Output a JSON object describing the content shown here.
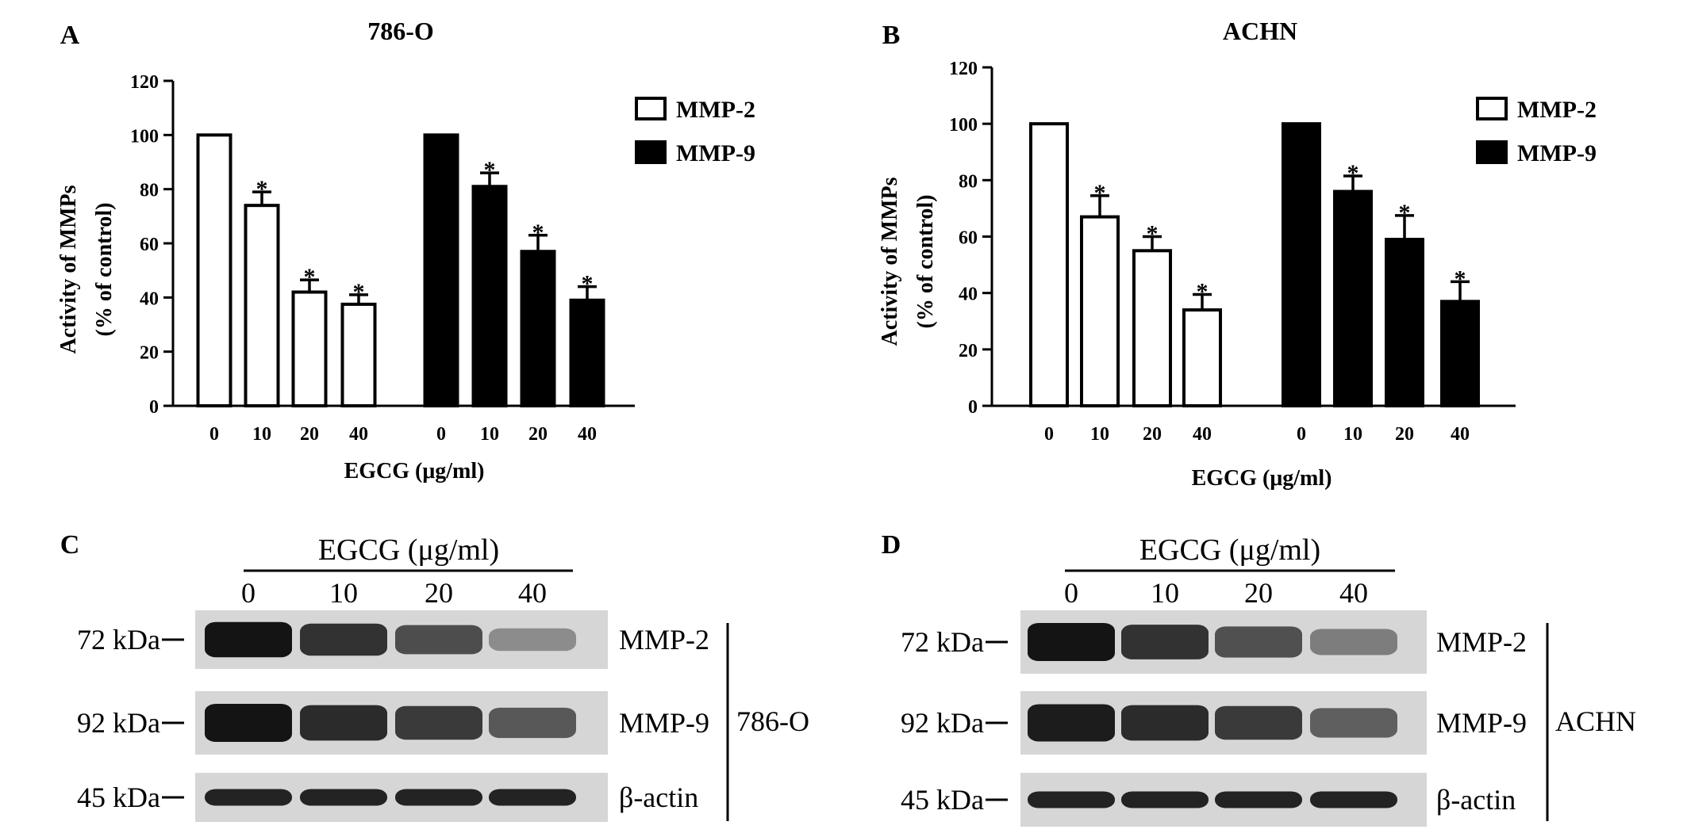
{
  "chart_data": [
    {
      "panel": "A",
      "type": "bar",
      "title": "786-O",
      "xlabel": "EGCG (μg/ml)",
      "ylabel": [
        "Activity of MMPs",
        "(% of control)"
      ],
      "ylim": [
        0,
        120
      ],
      "yticks": [
        0,
        20,
        40,
        60,
        80,
        100,
        120
      ],
      "categories": [
        "0",
        "10",
        "20",
        "40"
      ],
      "legend_position": "top-right",
      "series": [
        {
          "name": "MMP-2",
          "fill": "#ffffff",
          "values": [
            100,
            74,
            42,
            37.5
          ],
          "errors": [
            0,
            5,
            4.5,
            3.5
          ],
          "significant": [
            false,
            true,
            true,
            true
          ]
        },
        {
          "name": "MMP-9",
          "fill": "#000000",
          "values": [
            100,
            81,
            57,
            39
          ],
          "errors": [
            0,
            5,
            6,
            5
          ],
          "significant": [
            false,
            true,
            true,
            true
          ]
        }
      ],
      "significance_marker": "*"
    },
    {
      "panel": "B",
      "type": "bar",
      "title": "ACHN",
      "xlabel": "EGCG (μg/ml)",
      "ylabel": [
        "Activity of MMPs",
        "(% of control)"
      ],
      "ylim": [
        0,
        120
      ],
      "yticks": [
        0,
        20,
        40,
        60,
        80,
        100,
        120
      ],
      "categories": [
        "0",
        "10",
        "20",
        "40"
      ],
      "legend_position": "top-right",
      "series": [
        {
          "name": "MMP-2",
          "fill": "#ffffff",
          "values": [
            100,
            67,
            55,
            34
          ],
          "errors": [
            0,
            7.5,
            5,
            5.5
          ],
          "significant": [
            false,
            true,
            true,
            true
          ]
        },
        {
          "name": "MMP-9",
          "fill": "#000000",
          "values": [
            100,
            76,
            59,
            37
          ],
          "errors": [
            0,
            5.5,
            8.5,
            7
          ],
          "significant": [
            false,
            true,
            true,
            true
          ]
        }
      ],
      "significance_marker": "*"
    }
  ],
  "blots": [
    {
      "panel": "C",
      "header": "EGCG (μg/ml)",
      "lanes": [
        "0",
        "10",
        "20",
        "40"
      ],
      "cell_line": "786-O",
      "rows": [
        {
          "marker": "72 kDa",
          "protein": "MMP-2",
          "intensity": [
            1.0,
            0.8,
            0.62,
            0.2
          ]
        },
        {
          "marker": "92 kDa",
          "protein": "MMP-9",
          "intensity": [
            1.0,
            0.85,
            0.75,
            0.55
          ]
        },
        {
          "marker": "45 kDa",
          "protein": "β-actin",
          "intensity": [
            0.9,
            0.9,
            0.9,
            0.9
          ]
        }
      ]
    },
    {
      "panel": "D",
      "header": "EGCG (μg/ml)",
      "lanes": [
        "0",
        "10",
        "20",
        "40"
      ],
      "cell_line": "ACHN",
      "rows": [
        {
          "marker": "72 kDa",
          "protein": "MMP-2",
          "intensity": [
            1.0,
            0.8,
            0.6,
            0.3
          ]
        },
        {
          "marker": "92 kDa",
          "protein": "MMP-9",
          "intensity": [
            0.95,
            0.85,
            0.75,
            0.5
          ]
        },
        {
          "marker": "45 kDa",
          "protein": "β-actin",
          "intensity": [
            0.9,
            0.9,
            0.9,
            0.9
          ]
        }
      ]
    }
  ],
  "colors": {
    "ink": "#000000",
    "bar_open": "#ffffff",
    "bar_filled": "#000000",
    "blot_background": "#d6d6d6",
    "band": "#1a1a1a"
  }
}
